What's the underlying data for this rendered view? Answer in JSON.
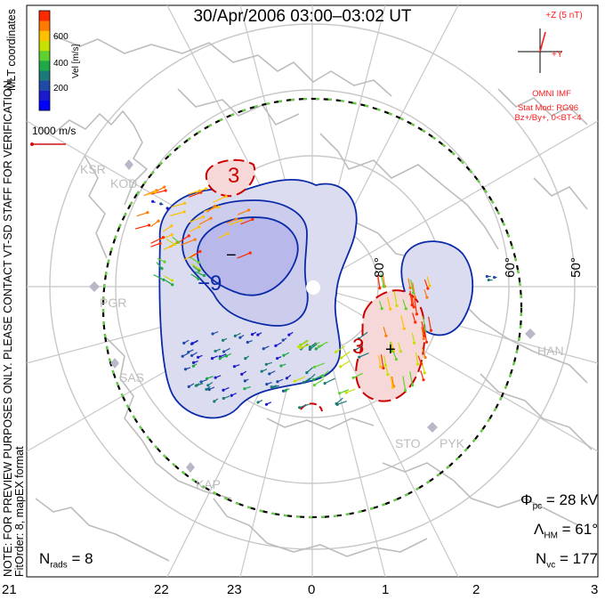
{
  "title": "30/Apr/2006 03:00–03:02 UT",
  "side_notes": {
    "preview": "NOTE: FOR PREVIEW PURPOSES ONLY. PLEASE CONTACT VT-SD STAFF FOR VERIFICATION.",
    "fit_order": "FitOrder: 8, mapEX format",
    "coords": "MLT coordinates"
  },
  "colorbar": {
    "label": "Vel [m/s]",
    "ticks": [
      "600",
      "400",
      "200"
    ],
    "colors": [
      "#ff2a00",
      "#ff7a00",
      "#ffc000",
      "#c8e000",
      "#60d030",
      "#1fa848",
      "#1b7a78",
      "#1f4aa8",
      "#1a1acc",
      "#0000ff"
    ]
  },
  "vector_scale": "1000 m/s",
  "imf": {
    "z_label": "+Z (5 nT)",
    "y_label": "+Y",
    "source": "OMNI IMF",
    "stat_mod": "Stat Mod: RG96",
    "condition": "Bz+/By+, 0<BT<4"
  },
  "stats": {
    "phi_pc": "= 28 kV",
    "lambda_hm": "= 61°",
    "n_vc": "= 177",
    "n_rads": "= 8"
  },
  "mlt_labels": [
    "21",
    "22",
    "23",
    "0",
    "1",
    "2",
    "3"
  ],
  "lat_labels": [
    "80°",
    "60°",
    "50°"
  ],
  "stations": [
    "KSR",
    "KOD",
    "PGR",
    "SAS",
    "KAP",
    "STO",
    "PYK",
    "HAN"
  ],
  "contours": {
    "minus_value": "−9",
    "plus_value": "3",
    "neg_marker": "−",
    "pos_marker": "+"
  },
  "colors": {
    "coast": "#bdbdbd",
    "grid": "#c8c8c8",
    "neg_contour": "#0a2aa8",
    "pos_contour": "#cc0000",
    "neg_fill": "#dcdcf0",
    "neg_fill_inner": "#b8b8ea",
    "pos_fill": "#f6d8d8"
  }
}
